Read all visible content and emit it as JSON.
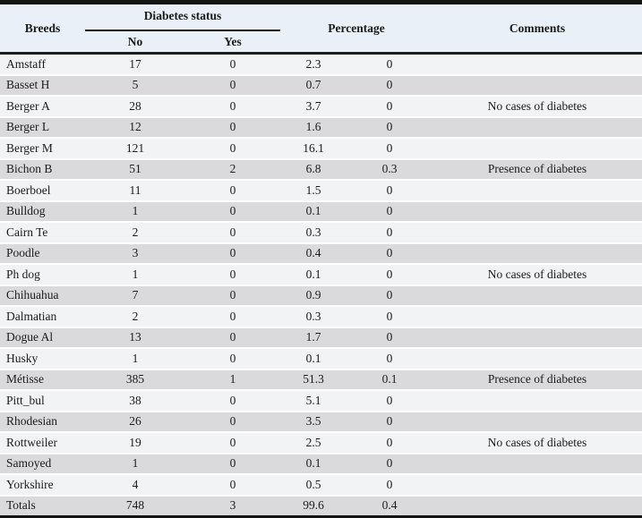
{
  "table": {
    "columns": {
      "breeds": "Breeds",
      "diabetes_status": "Diabetes status",
      "no": "No",
      "yes": "Yes",
      "percentage": "Percentage",
      "comments": "Comments"
    },
    "rows": [
      {
        "breed": "Amstaff",
        "no": "17",
        "yes": "0",
        "pct_no": "2.3",
        "pct_yes": "0",
        "comment": ""
      },
      {
        "breed": "Basset H",
        "no": "5",
        "yes": "0",
        "pct_no": "0.7",
        "pct_yes": "0",
        "comment": ""
      },
      {
        "breed": "Berger A",
        "no": "28",
        "yes": "0",
        "pct_no": "3.7",
        "pct_yes": "0",
        "comment": "No cases of diabetes"
      },
      {
        "breed": "Berger L",
        "no": "12",
        "yes": "0",
        "pct_no": "1.6",
        "pct_yes": "0",
        "comment": ""
      },
      {
        "breed": "Berger M",
        "no": "121",
        "yes": "0",
        "pct_no": "16.1",
        "pct_yes": "0",
        "comment": ""
      },
      {
        "breed": "Bichon B",
        "no": "51",
        "yes": "2",
        "pct_no": "6.8",
        "pct_yes": "0.3",
        "comment": "Presence of diabetes"
      },
      {
        "breed": "Boerboel",
        "no": "11",
        "yes": "0",
        "pct_no": "1.5",
        "pct_yes": "0",
        "comment": ""
      },
      {
        "breed": "Bulldog",
        "no": "1",
        "yes": "0",
        "pct_no": "0.1",
        "pct_yes": "0",
        "comment": ""
      },
      {
        "breed": "Cairn Te",
        "no": "2",
        "yes": "0",
        "pct_no": "0.3",
        "pct_yes": "0",
        "comment": ""
      },
      {
        "breed": "Poodle",
        "no": "3",
        "yes": "0",
        "pct_no": "0.4",
        "pct_yes": "0",
        "comment": ""
      },
      {
        "breed": "Ph dog",
        "no": "1",
        "yes": "0",
        "pct_no": "0.1",
        "pct_yes": "0",
        "comment": "No cases of diabetes"
      },
      {
        "breed": "Chihuahua",
        "no": "7",
        "yes": "0",
        "pct_no": "0.9",
        "pct_yes": "0",
        "comment": ""
      },
      {
        "breed": "Dalmatian",
        "no": "2",
        "yes": "0",
        "pct_no": "0.3",
        "pct_yes": "0",
        "comment": ""
      },
      {
        "breed": "Dogue Al",
        "no": "13",
        "yes": "0",
        "pct_no": "1.7",
        "pct_yes": "0",
        "comment": ""
      },
      {
        "breed": "Husky",
        "no": "1",
        "yes": "0",
        "pct_no": "0.1",
        "pct_yes": "0",
        "comment": ""
      },
      {
        "breed": "Métisse",
        "no": "385",
        "yes": "1",
        "pct_no": "51.3",
        "pct_yes": "0.1",
        "comment": "Presence of diabetes"
      },
      {
        "breed": "Pitt_bul",
        "no": "38",
        "yes": "0",
        "pct_no": "5.1",
        "pct_yes": "0",
        "comment": ""
      },
      {
        "breed": "Rhodesian",
        "no": "26",
        "yes": "0",
        "pct_no": "3.5",
        "pct_yes": "0",
        "comment": ""
      },
      {
        "breed": "Rottweiler",
        "no": "19",
        "yes": "0",
        "pct_no": "2.5",
        "pct_yes": "0",
        "comment": "No cases of diabetes"
      },
      {
        "breed": "Samoyed",
        "no": "1",
        "yes": "0",
        "pct_no": "0.1",
        "pct_yes": "0",
        "comment": ""
      },
      {
        "breed": "Yorkshire",
        "no": "4",
        "yes": "0",
        "pct_no": "0.5",
        "pct_yes": "0",
        "comment": ""
      },
      {
        "breed": "Totals",
        "no": "748",
        "yes": "3",
        "pct_no": "99.6",
        "pct_yes": "0.4",
        "comment": ""
      }
    ]
  },
  "colors": {
    "header_bg": "#e9f0f8",
    "row_light": "#f2f3f4",
    "row_dark": "#dadadc",
    "border": "#141414",
    "text": "#1b1b1b"
  }
}
